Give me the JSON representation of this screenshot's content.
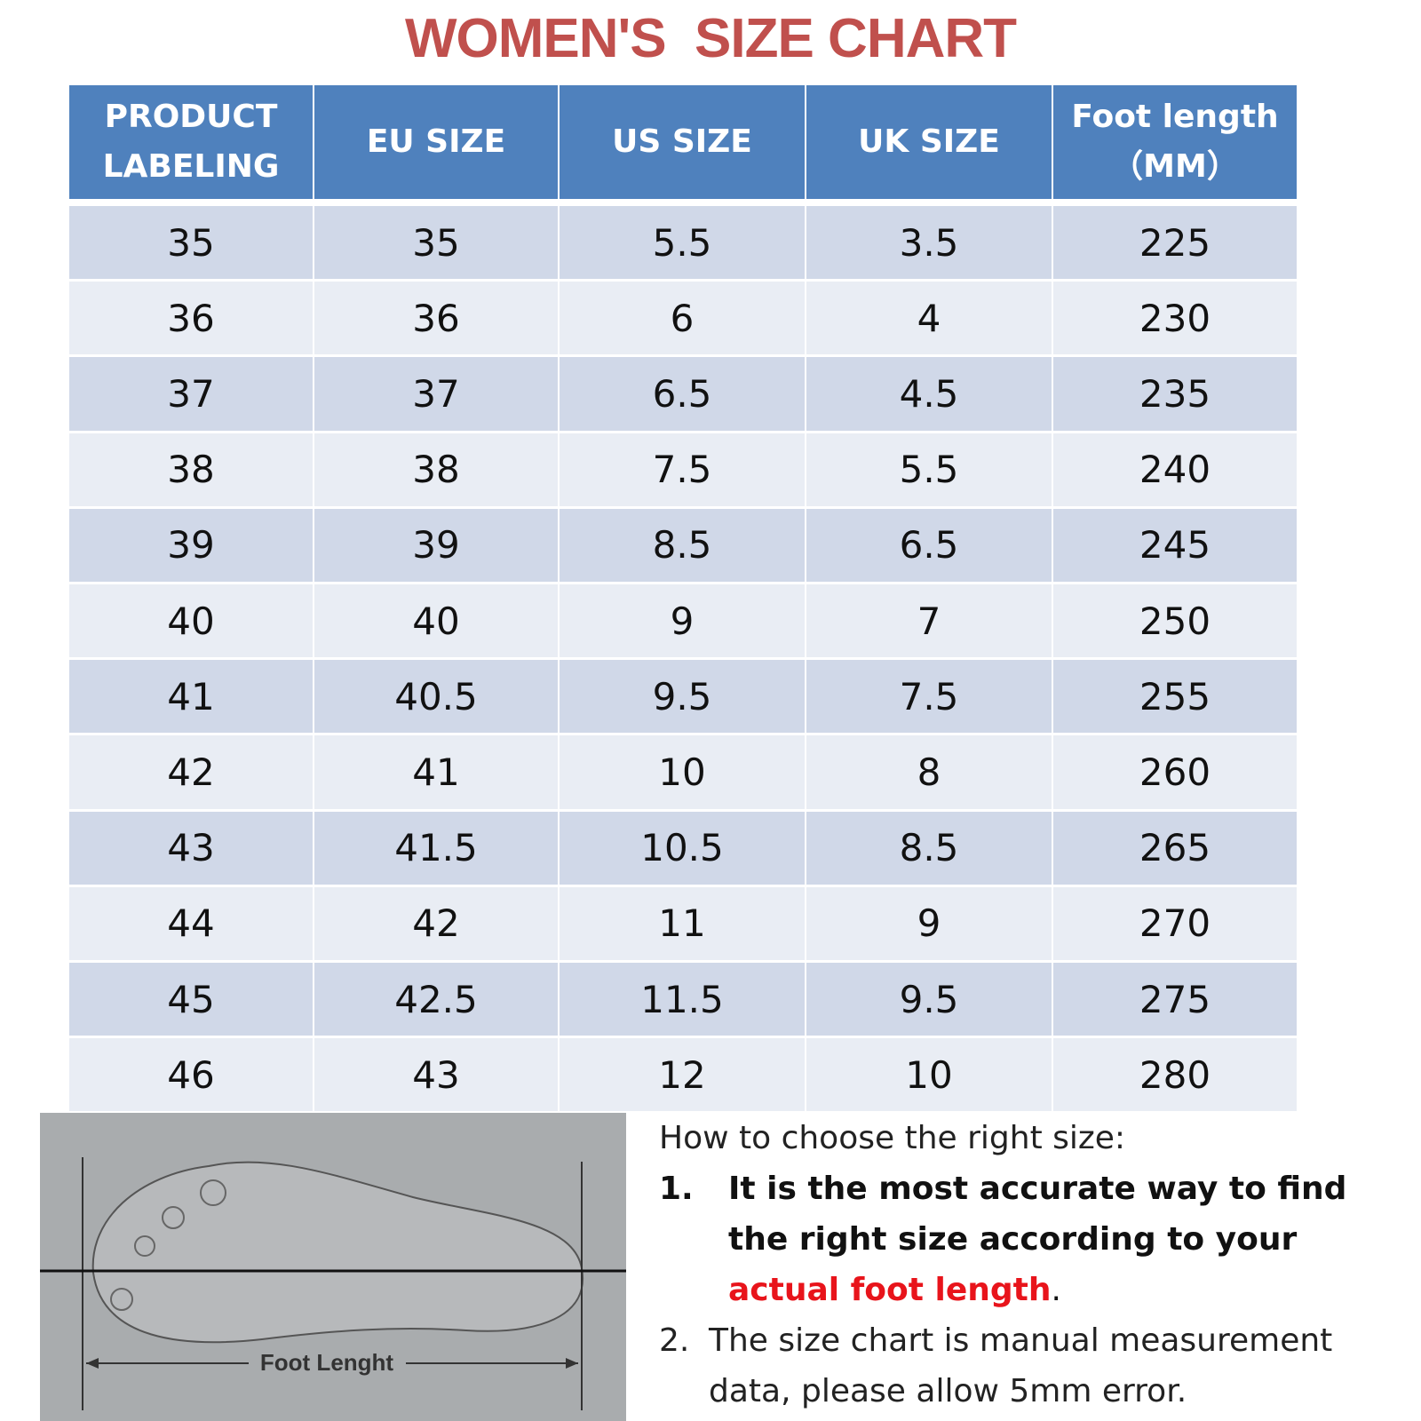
{
  "title": "WOMEN'S  SIZE CHART",
  "table": {
    "header": [
      [
        "PRODUCT",
        "LABELING"
      ],
      [
        "EU SIZE"
      ],
      [
        "US SIZE"
      ],
      [
        "UK SIZE"
      ],
      [
        "Foot length",
        "（MM）"
      ]
    ],
    "rows": [
      [
        35,
        35,
        5.5,
        3.5,
        225
      ],
      [
        36,
        36,
        6,
        4,
        230
      ],
      [
        37,
        37,
        6.5,
        4.5,
        235
      ],
      [
        38,
        38,
        7.5,
        5.5,
        240
      ],
      [
        39,
        39,
        8.5,
        6.5,
        245
      ],
      [
        40,
        40,
        9,
        7,
        250
      ],
      [
        41,
        40.5,
        9.5,
        7.5,
        255
      ],
      [
        42,
        41,
        10,
        8,
        260
      ],
      [
        43,
        41.5,
        10.5,
        8.5,
        265
      ],
      [
        44,
        42,
        11,
        9,
        270
      ],
      [
        45,
        42.5,
        11.5,
        9.5,
        275
      ],
      [
        46,
        43,
        12,
        10,
        280
      ]
    ]
  },
  "figure": {
    "label": "Foot Lenght"
  },
  "notes": {
    "heading": "How to choose the right size:",
    "items": [
      {
        "marker": "1.",
        "text": "It is the most accurate way to find the right size according to your",
        "highlight": "actual foot length",
        "end": "."
      },
      {
        "marker": "2.",
        "text": "The size chart is manual measurement data, please allow 5mm error."
      }
    ]
  }
}
